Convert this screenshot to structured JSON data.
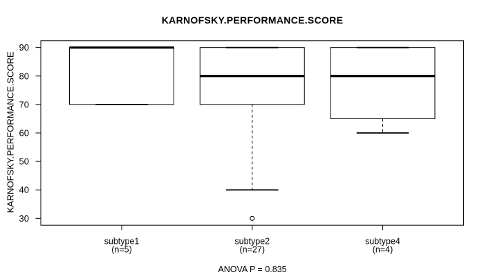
{
  "chart_data": {
    "type": "boxplot",
    "title": "KARNOFSKY.PERFORMANCE.SCORE",
    "ylabel": "KARNOFSKY.PERFORMANCE.SCORE",
    "xlabel": "",
    "footer": "ANOVA P = 0.835",
    "ylim": [
      27.6,
      92.4
    ],
    "yticks": [
      30,
      40,
      50,
      60,
      70,
      80,
      90
    ],
    "grid": false,
    "groups": [
      {
        "label": "subtype1",
        "sublabel": "(n=5)",
        "n": 5,
        "stats": {
          "min": 70,
          "q1": 70,
          "median": 90,
          "q3": 90,
          "max": 90
        },
        "outliers": []
      },
      {
        "label": "subtype2",
        "sublabel": "(n=27)",
        "n": 27,
        "stats": {
          "min": 40,
          "q1": 70,
          "median": 80,
          "q3": 90,
          "max": 90
        },
        "outliers": [
          30
        ]
      },
      {
        "label": "subtype4",
        "sublabel": "(n=4)",
        "n": 4,
        "stats": {
          "min": 60,
          "q1": 65,
          "median": 80,
          "q3": 90,
          "max": 90
        },
        "outliers": []
      }
    ],
    "colors": {
      "line": "#000000",
      "background": "#ffffff",
      "box_fill": "#ffffff"
    }
  }
}
